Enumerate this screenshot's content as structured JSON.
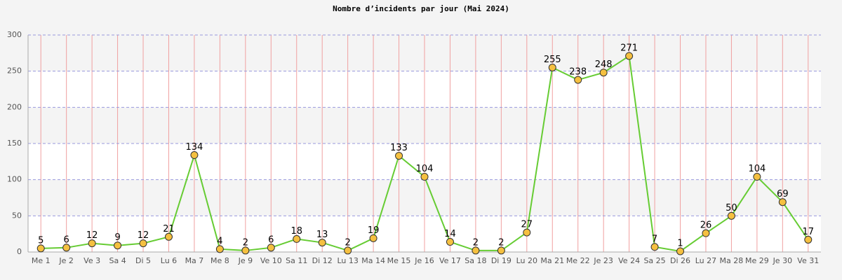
{
  "chart_data": {
    "type": "line",
    "title": "Nombre d’incidents par jour (Mai 2024)",
    "categories": [
      "Me 1",
      "Je 2",
      "Ve 3",
      "Sa 4",
      "Di 5",
      "Lu 6",
      "Ma 7",
      "Me 8",
      "Je 9",
      "Ve 10",
      "Sa 11",
      "Di 12",
      "Lu 13",
      "Ma 14",
      "Me 15",
      "Je 16",
      "Ve 17",
      "Sa 18",
      "Di 19",
      "Lu 20",
      "Ma 21",
      "Me 22",
      "Je 23",
      "Ve 24",
      "Sa 25",
      "Di 26",
      "Lu 27",
      "Ma 28",
      "Me 29",
      "Je 30",
      "Ve 31"
    ],
    "series": [
      {
        "color": "#66cc33",
        "marker_color": "#f5c040",
        "values": [
          5,
          6,
          12,
          9,
          12,
          21,
          134,
          4,
          2,
          6,
          18,
          13,
          2,
          19,
          133,
          104,
          14,
          2,
          2,
          27,
          255,
          238,
          248,
          271,
          7,
          1,
          26,
          50,
          104,
          69,
          17
        ]
      }
    ],
    "ylim": [
      0,
      300
    ],
    "yticks": [
      0,
      50,
      100,
      150,
      200,
      250,
      300
    ],
    "grid": true
  }
}
